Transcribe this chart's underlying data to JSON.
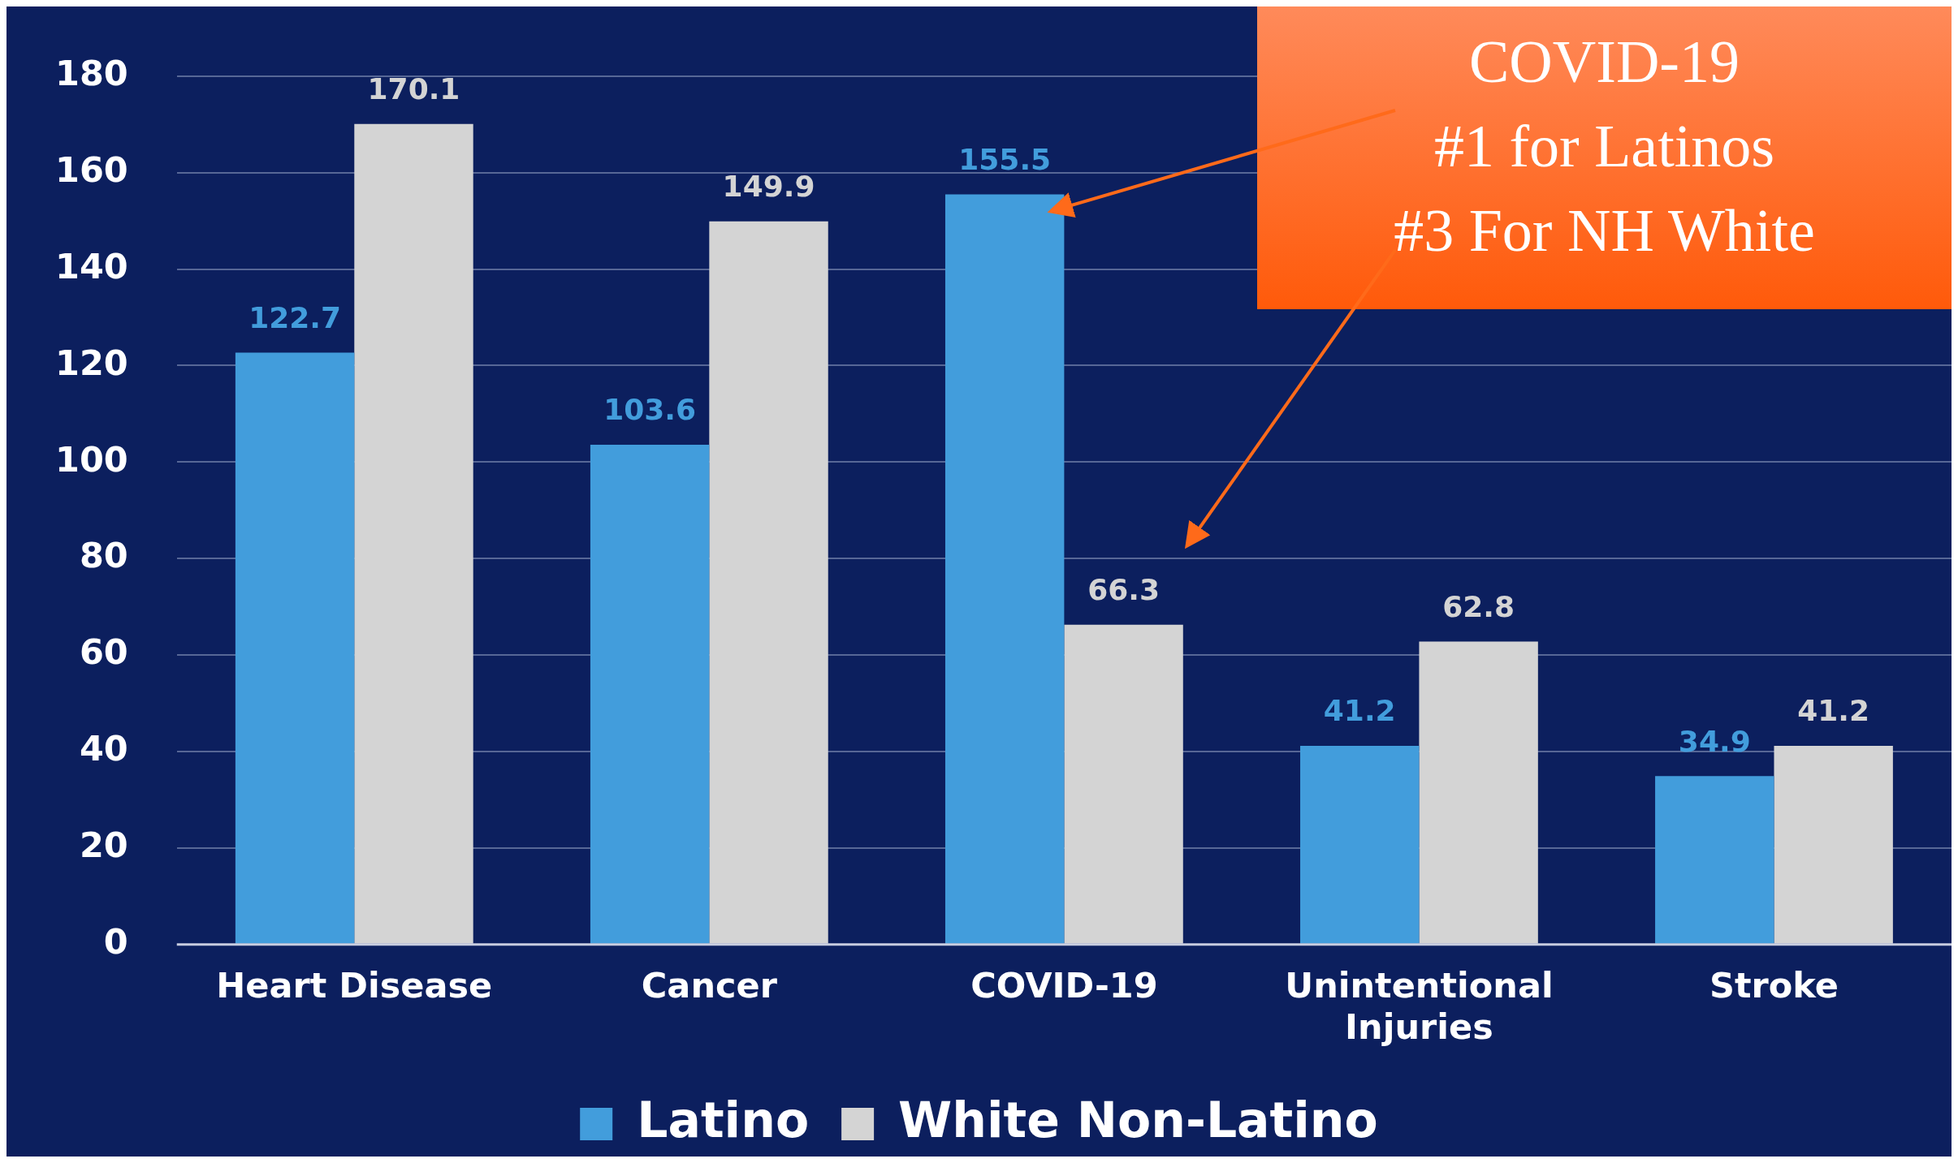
{
  "chart_data": {
    "type": "bar",
    "categories": [
      "Heart Disease",
      "Cancer",
      "COVID-19",
      "Unintentional Injuries",
      "Stroke"
    ],
    "series": [
      {
        "name": "Latino",
        "color": "#429ddc",
        "values": [
          122.7,
          103.6,
          155.5,
          41.2,
          34.9
        ]
      },
      {
        "name": "White Non-Latino",
        "color": "#d4d4d4",
        "values": [
          170.1,
          149.9,
          66.3,
          62.8,
          41.2
        ]
      }
    ],
    "ylim": [
      0,
      180
    ],
    "yticks": [
      0,
      20,
      40,
      60,
      80,
      100,
      120,
      140,
      160,
      180
    ],
    "grid": "y",
    "legend": "bottom",
    "data_labels": true,
    "annotations": [
      "COVID-19",
      "#1 for Latinos",
      "#3 For NH White"
    ]
  }
}
